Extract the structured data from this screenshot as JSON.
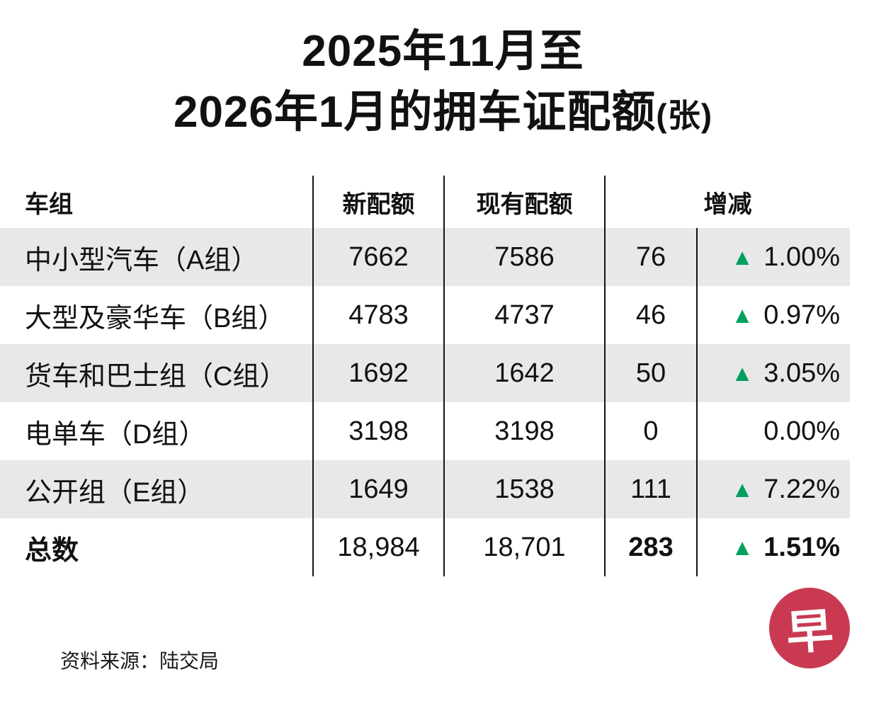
{
  "title": {
    "line1": "2025年11月至",
    "line2": "2026年1月的拥车证配额",
    "unit": "(张)"
  },
  "chart_data": {
    "type": "table",
    "title": "2025年11月至2026年1月的拥车证配额(张)",
    "columns": [
      "车组",
      "新配额",
      "现有配额",
      "增减(数量)",
      "增减(百分比)"
    ],
    "rows": [
      {
        "group": "中小型汽车（A组）",
        "new_quota": "7662",
        "current_quota": "7586",
        "change": "76",
        "arrow": "▲",
        "pct": "1.00%"
      },
      {
        "group": "大型及豪华车（B组）",
        "new_quota": "4783",
        "current_quota": "4737",
        "change": "46",
        "arrow": "▲",
        "pct": "0.97%"
      },
      {
        "group": "货车和巴士组（C组）",
        "new_quota": "1692",
        "current_quota": "1642",
        "change": "50",
        "arrow": "▲",
        "pct": "3.05%"
      },
      {
        "group": "电单车（D组）",
        "new_quota": "3198",
        "current_quota": "3198",
        "change": "0",
        "arrow": "",
        "pct": "0.00%"
      },
      {
        "group": "公开组（E组）",
        "new_quota": "1649",
        "current_quota": "1538",
        "change": "111",
        "arrow": "▲",
        "pct": "7.22%"
      },
      {
        "group": "总数",
        "new_quota": "18,984",
        "current_quota": "18,701",
        "change": "283",
        "arrow": "▲",
        "pct": "1.51%"
      }
    ]
  },
  "table_headers": {
    "group": "车组",
    "new_quota": "新配额",
    "current_quota": "现有配额",
    "change": "增减"
  },
  "footer": {
    "source": "资料来源：陆交局"
  },
  "logo": {
    "char": "早"
  },
  "colors": {
    "up_green": "#00a05f",
    "row_shade": "#e8e8e8",
    "logo_red": "#c93a52",
    "line": "#141414"
  }
}
